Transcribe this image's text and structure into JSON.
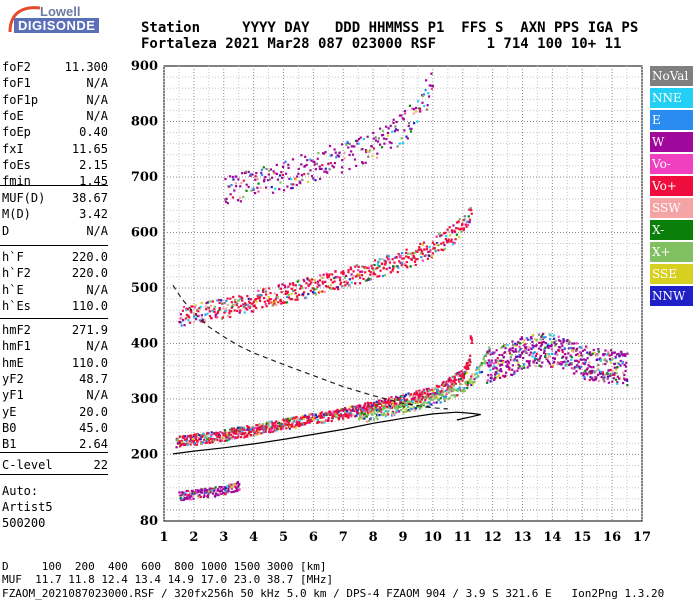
{
  "logo": {
    "line1": "Lowell",
    "line2": "DIGISONDE"
  },
  "header": {
    "labels": [
      "Station",
      "YYYY",
      "DAY",
      "DDD",
      "HHMMSS",
      "P1",
      "FFS",
      "S",
      "AXN",
      "PPS",
      "IGA",
      "PS"
    ],
    "values": [
      "Fortaleza",
      "2021",
      "Mar28",
      "087",
      "023000",
      "RSF",
      "",
      "1",
      "714",
      "100",
      "10+",
      "11"
    ],
    "line1": "Station     YYYY DAY   DDD HHMMSS P1  FFS S  AXN PPS IGA PS",
    "line2": "Fortaleza 2021 Mar28 087 023000 RSF      1 714 100 10+ 11"
  },
  "params": {
    "group1": [
      {
        "label": "foF2",
        "value": "11.300"
      },
      {
        "label": "foF1",
        "value": "N/A"
      },
      {
        "label": "foF1p",
        "value": "N/A"
      },
      {
        "label": "foE",
        "value": "N/A"
      },
      {
        "label": "foEp",
        "value": "0.40"
      },
      {
        "label": "fxI",
        "value": "11.65"
      },
      {
        "label": "foEs",
        "value": "2.15"
      },
      {
        "label": "fmin",
        "value": "1.45"
      }
    ],
    "group2": [
      {
        "label": "MUF(D)",
        "value": "38.67"
      },
      {
        "label": "M(D)",
        "value": "3.42"
      },
      {
        "label": "D",
        "value": "N/A"
      }
    ],
    "group3": [
      {
        "label": "h`F",
        "value": "220.0"
      },
      {
        "label": "h`F2",
        "value": "220.0"
      },
      {
        "label": "h`E",
        "value": "N/A"
      },
      {
        "label": "h`Es",
        "value": "110.0"
      }
    ],
    "group4": [
      {
        "label": "hmF2",
        "value": "271.9"
      },
      {
        "label": "hmF1",
        "value": "N/A"
      },
      {
        "label": "hmE",
        "value": "110.0"
      },
      {
        "label": "yF2",
        "value": "48.7"
      },
      {
        "label": "yF1",
        "value": "N/A"
      },
      {
        "label": "yE",
        "value": "20.0"
      },
      {
        "label": "B0",
        "value": "45.0"
      },
      {
        "label": "B1",
        "value": "2.64"
      }
    ],
    "group5": [
      {
        "label": "C-level",
        "value": "22"
      }
    ],
    "auto": [
      "Auto:",
      "Artist5",
      "500200"
    ]
  },
  "legend": [
    {
      "label": "NoVal",
      "color": "#7f7f7f"
    },
    {
      "label": "NNE",
      "color": "#22d0f5"
    },
    {
      "label": "E",
      "color": "#2a8cf0"
    },
    {
      "label": "W",
      "color": "#a0089c"
    },
    {
      "label": "Vo-",
      "color": "#f040c0"
    },
    {
      "label": "Vo+",
      "color": "#ee0d3c"
    },
    {
      "label": "SSW",
      "color": "#f4a4a4"
    },
    {
      "label": "X-",
      "color": "#0a800a"
    },
    {
      "label": "X+",
      "color": "#80c060"
    },
    {
      "label": "SSE",
      "color": "#d8d020"
    },
    {
      "label": "NNW",
      "color": "#2020c8"
    }
  ],
  "footer": {
    "line1": "D     100  200  400  600  800 1000 1500 3000 [km]",
    "line2": "MUF  11.7 11.8 12.4 13.4 14.9 17.0 23.0 38.7 [MHz]",
    "line3": "FZAOM_2021087023000.RSF / 320fx256h 50 kHz 5.0 km / DPS-4 FZAOM 904 / 3.9 S 321.6 E   Ion2Png 1.3.20"
  },
  "chart_data": {
    "type": "scatter",
    "xlim": [
      1,
      17
    ],
    "ylim": [
      80,
      900
    ],
    "x_ticks": [
      1,
      2,
      3,
      4,
      5,
      6,
      7,
      8,
      9,
      10,
      11,
      12,
      13,
      14,
      15,
      16,
      17
    ],
    "y_ticks": [
      80,
      200,
      300,
      400,
      500,
      600,
      700,
      800,
      900
    ],
    "grid": true,
    "traces": [
      {
        "name": "F2 trace (O)",
        "color": "#ee0d3c",
        "x": [
          1.4,
          2,
          3,
          4,
          5,
          6,
          7,
          8,
          9,
          10,
          10.5,
          11,
          11.2,
          11.3
        ],
        "y": [
          225,
          228,
          236,
          246,
          256,
          266,
          276,
          288,
          300,
          314,
          330,
          345,
          370,
          440
        ]
      },
      {
        "name": "F2 trace (X)",
        "color": "#80c060",
        "x": [
          7.5,
          8.5,
          9.5,
          10.5,
          11.2,
          11.6,
          11.9
        ],
        "y": [
          268,
          280,
          293,
          310,
          330,
          360,
          400
        ]
      },
      {
        "name": "2nd hop",
        "color": "#ee0d3c",
        "x": [
          1.5,
          2,
          3,
          4,
          5,
          6,
          7,
          8,
          9,
          10,
          10.7,
          11.3
        ],
        "y": [
          450,
          455,
          465,
          478,
          492,
          505,
          520,
          535,
          552,
          575,
          600,
          640
        ]
      },
      {
        "name": "3rd hop",
        "color": "#a0089c",
        "x": [
          3,
          4,
          5,
          6,
          7,
          8,
          9,
          10
        ],
        "y": [
          680,
          690,
          705,
          720,
          740,
          760,
          790,
          870
        ]
      },
      {
        "name": "Es",
        "color": "#a0089c",
        "x": [
          1.5,
          2,
          2.5,
          3,
          3.5
        ],
        "y": [
          127,
          130,
          133,
          137,
          145
        ]
      },
      {
        "name": "spread F",
        "color": "#a0089c",
        "x": [
          11.8,
          12.5,
          13,
          13.5,
          14,
          14.5,
          15,
          15.5,
          16,
          16.5
        ],
        "y": [
          360,
          372,
          385,
          390,
          388,
          380,
          368,
          362,
          360,
          355
        ]
      }
    ],
    "profile_solid": {
      "x": [
        1.3,
        2,
        3,
        4,
        5,
        6,
        7,
        8,
        9,
        10,
        10.8,
        11.3,
        11.6,
        11.3,
        10.8
      ],
      "y": [
        201,
        206,
        212,
        219,
        227,
        236,
        245,
        256,
        265,
        273,
        276,
        274,
        272,
        268,
        262
      ]
    },
    "profile_dashed": {
      "x": [
        1.3,
        1.6,
        2,
        2.5,
        3,
        3.5,
        4,
        5,
        6,
        7,
        8,
        9,
        10,
        10.5
      ],
      "y": [
        505,
        480,
        455,
        430,
        412,
        396,
        383,
        362,
        342,
        322,
        306,
        292,
        284,
        282
      ]
    }
  }
}
